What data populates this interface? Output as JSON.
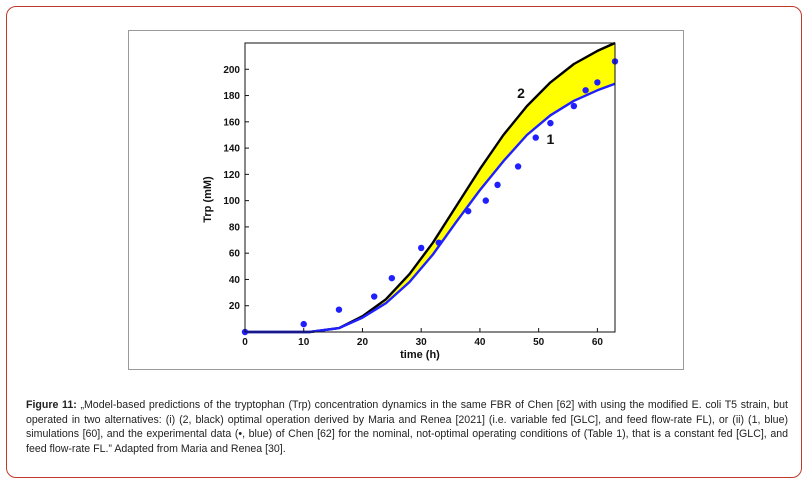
{
  "chart_data": {
    "type": "line",
    "xlabel": "time (h)",
    "ylabel": "Trp (mM)",
    "xlim": [
      0,
      63
    ],
    "ylim": [
      0,
      220
    ],
    "x_ticks": [
      0,
      10,
      20,
      30,
      40,
      50,
      60
    ],
    "y_ticks": [
      20,
      40,
      60,
      80,
      100,
      120,
      140,
      160,
      180,
      200
    ],
    "grid": false,
    "series": [
      {
        "name": "2",
        "color": "#000000",
        "x": [
          0,
          11,
          16,
          20,
          24,
          28,
          32,
          36,
          40,
          44,
          48,
          52,
          56,
          60,
          63
        ],
        "values": [
          0,
          0,
          3,
          12,
          25,
          44,
          68,
          96,
          124,
          150,
          172,
          190,
          204,
          214,
          220
        ]
      },
      {
        "name": "1",
        "color": "#1f1fff",
        "x": [
          0,
          11,
          16,
          20,
          24,
          28,
          32,
          36,
          40,
          44,
          48,
          52,
          56,
          60,
          63
        ],
        "values": [
          0,
          0,
          3,
          11,
          22,
          38,
          59,
          84,
          108,
          130,
          150,
          165,
          176,
          184,
          189
        ]
      },
      {
        "name": "",
        "type": "scatter",
        "color": "#1f1fff",
        "x": [
          0,
          10,
          16,
          22,
          25,
          30,
          33,
          38,
          41,
          43,
          46.5,
          49.5,
          52,
          56,
          58,
          60,
          63
        ],
        "values": [
          0,
          6,
          17,
          27,
          41,
          64,
          68,
          92,
          100,
          112,
          126,
          148,
          159,
          172,
          184,
          190,
          206
        ]
      }
    ],
    "fill_between": {
      "upper": "2",
      "lower": "1",
      "color": "#ffff00"
    },
    "annotations": [
      {
        "text": "2",
        "x": 47,
        "y": 178
      },
      {
        "text": "1",
        "x": 52,
        "y": 143
      }
    ]
  },
  "caption": {
    "label": "Figure 11:",
    "text": " „Model-based predictions of the tryptophan (Trp) concentration dynamics in the same FBR of Chen [62] with using the modified E. coli T5 strain, but operated in two alternatives: (i) (2, black) optimal operation derived by Maria and Renea [2021] (i.e. variable fed [GLC], and feed flow-rate FL), or (ii) (1, blue) simulations [60], and the experimental data (•, blue) of Chen [62] for the nominal, not-optimal operating conditions of (Table 1), that is a constant fed [GLC], and feed flow-rate FL.” Adapted from Maria and Renea [30]."
  }
}
